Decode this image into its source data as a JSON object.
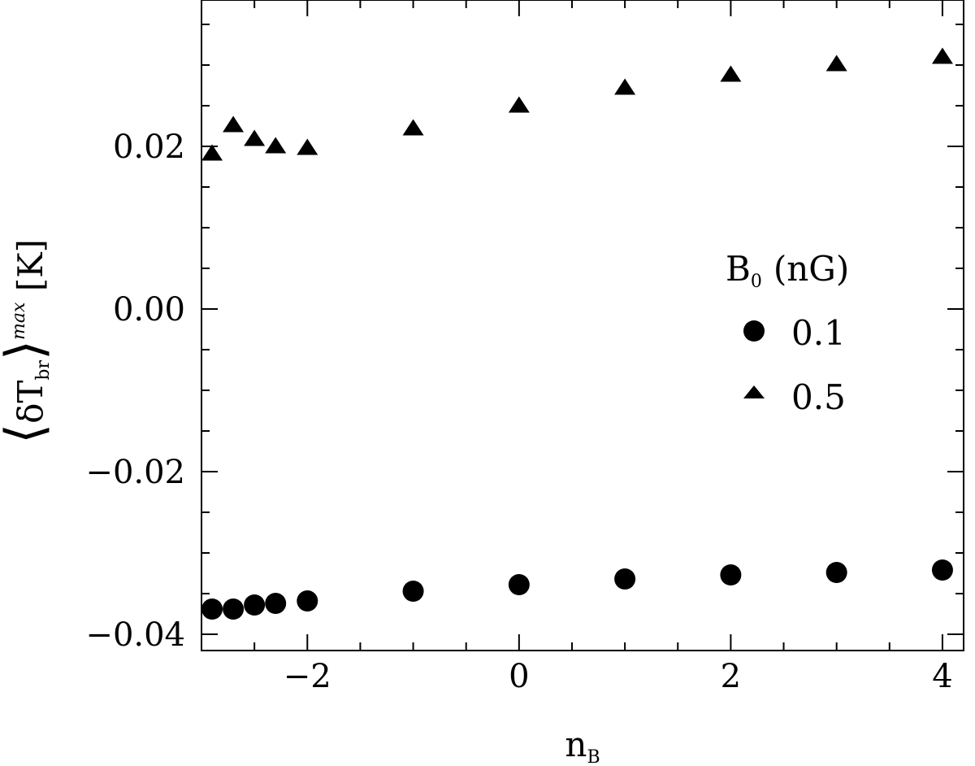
{
  "chart_data": {
    "type": "scatter",
    "xlim": [
      -3.0,
      4.2
    ],
    "ylim": [
      -0.042,
      0.038
    ],
    "xticks": [
      {
        "value": -2,
        "label": "−2"
      },
      {
        "value": 0,
        "label": "0"
      },
      {
        "value": 2,
        "label": "2"
      },
      {
        "value": 4,
        "label": "4"
      }
    ],
    "yticks": [
      {
        "value": -0.04,
        "label": "−0.04"
      },
      {
        "value": -0.02,
        "label": "−0.02"
      },
      {
        "value": 0.0,
        "label": "0.00"
      },
      {
        "value": 0.02,
        "label": "0.02"
      }
    ],
    "x_minor_step": 0.5,
    "y_minor_step": 0.005,
    "xlabel": {
      "main": "n",
      "sub": "B"
    },
    "ylabel": {
      "main": "δT",
      "sub": "br",
      "sup": "max",
      "unit": "[K]"
    },
    "grid": false,
    "legend": {
      "position": "right-middle",
      "title_main": "B",
      "title_sub": "0",
      "title_unit": "(nG)"
    },
    "series": [
      {
        "name": "0.1",
        "marker": "circle",
        "color": "#000000",
        "x": [
          -2.9,
          -2.7,
          -2.5,
          -2.3,
          -2.0,
          -1.0,
          0.0,
          1.0,
          2.0,
          3.0,
          4.0
        ],
        "y": [
          -0.0369,
          -0.0369,
          -0.0364,
          -0.0362,
          -0.0359,
          -0.0347,
          -0.0339,
          -0.0332,
          -0.0327,
          -0.0324,
          -0.0321
        ]
      },
      {
        "name": "0.5",
        "marker": "triangle",
        "color": "#000000",
        "x": [
          -2.9,
          -2.7,
          -2.5,
          -2.3,
          -2.0,
          -1.0,
          0.0,
          1.0,
          2.0,
          3.0,
          4.0
        ],
        "y": [
          0.0192,
          0.0227,
          0.021,
          0.0201,
          0.0199,
          0.0223,
          0.0251,
          0.0273,
          0.0289,
          0.0302,
          0.0311
        ]
      }
    ]
  }
}
